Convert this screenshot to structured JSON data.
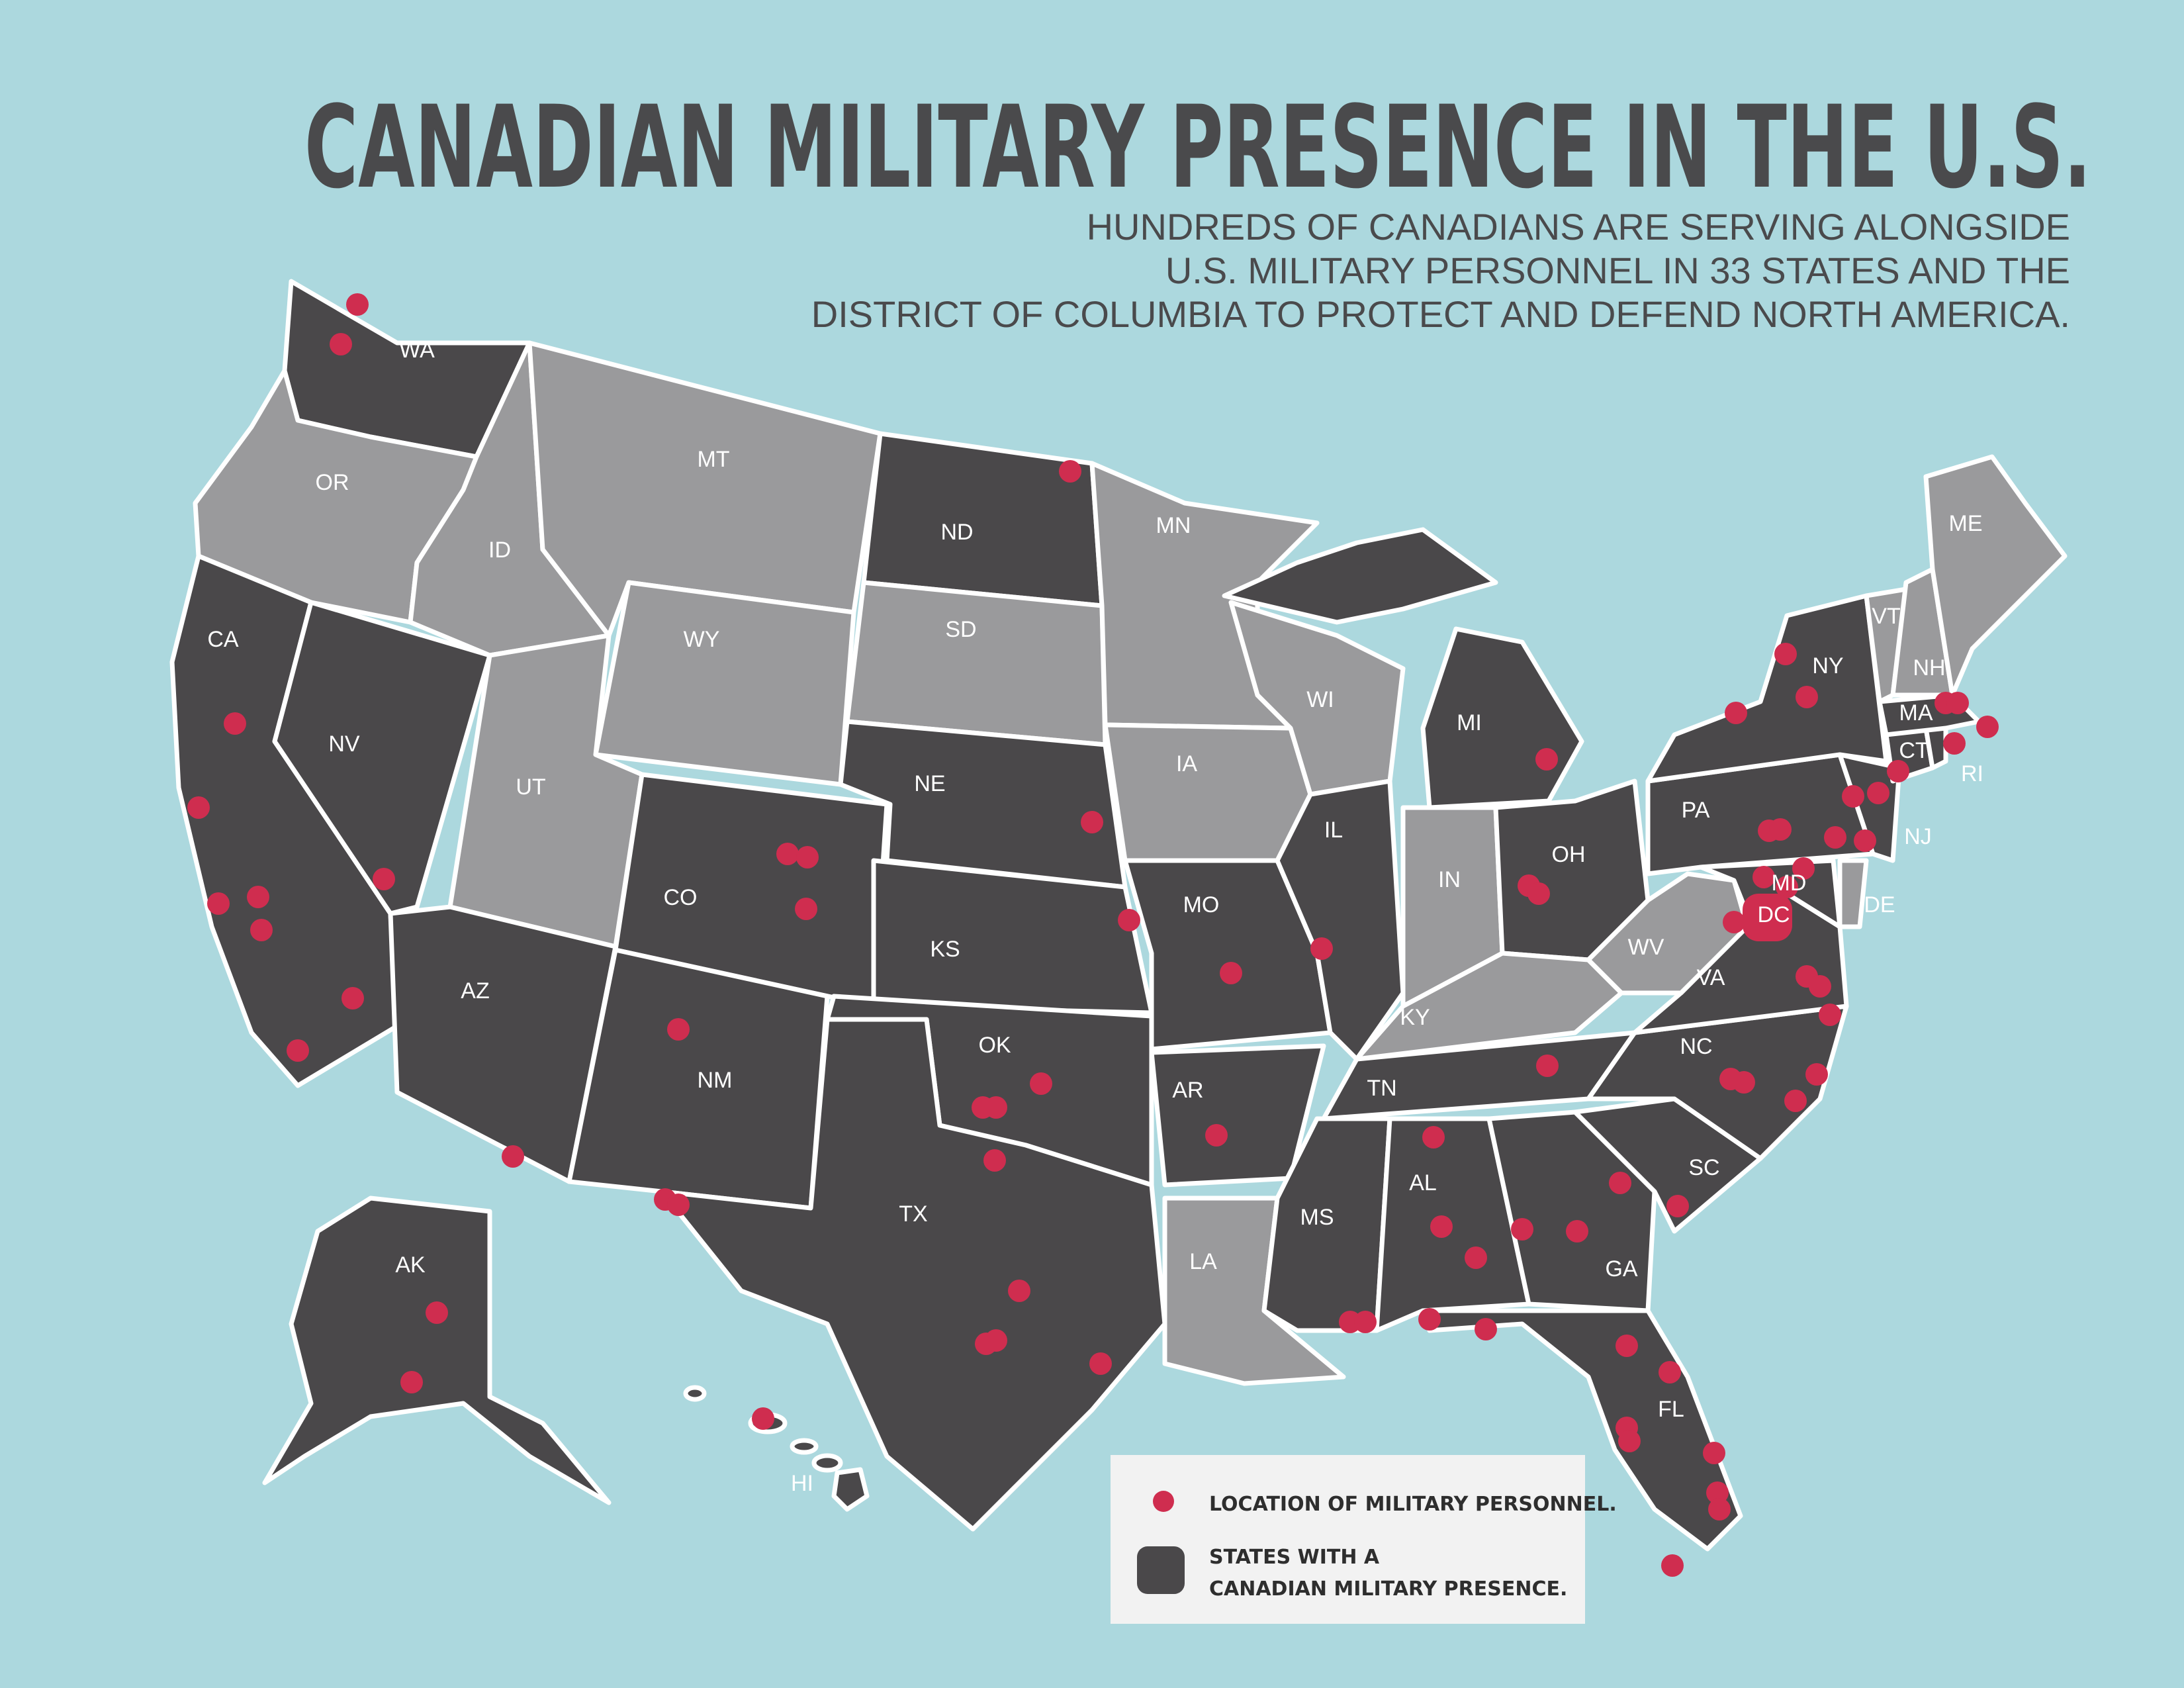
{
  "title": "CANADIAN MILITARY PRESENCE IN THE U.S.",
  "subtitle": [
    "HUNDREDS OF CANADIANS ARE SERVING ALONGSIDE",
    "U.S. MILITARY PERSONNEL IN 33 STATES AND THE",
    "DISTRICT OF COLUMBIA TO PROTECT AND DEFEND NORTH AMERICA."
  ],
  "colors": {
    "background": "#acd8de",
    "with_presence": "#4a484a",
    "without_presence": "#9a9a9c",
    "personnel_marker": "#cf2d4f",
    "border": "#ffffff"
  },
  "states_with_presence": [
    "WA",
    "CA",
    "NV",
    "AZ",
    "CO",
    "NM",
    "ND",
    "NE",
    "KS",
    "OK",
    "TX",
    "MO",
    "AR",
    "IL",
    "MS",
    "AL",
    "TN",
    "MI",
    "OH",
    "GA",
    "SC",
    "NC",
    "FL",
    "VA",
    "MD",
    "PA",
    "NY",
    "NJ",
    "MA",
    "CT",
    "RI",
    "AK",
    "HI",
    "DC"
  ],
  "states_without_presence": [
    "OR",
    "ID",
    "MT",
    "WY",
    "UT",
    "SD",
    "MN",
    "IA",
    "WI",
    "LA",
    "IN",
    "KY",
    "WV",
    "VT",
    "NH",
    "ME",
    "DE"
  ],
  "labels": {
    "WA": "WA",
    "OR": "OR",
    "CA": "CA",
    "NV": "NV",
    "ID": "ID",
    "MT": "MT",
    "WY": "WY",
    "UT": "UT",
    "AZ": "AZ",
    "CO": "CO",
    "NM": "NM",
    "ND": "ND",
    "SD": "SD",
    "NE": "NE",
    "KS": "KS",
    "OK": "OK",
    "TX": "TX",
    "MN": "MN",
    "IA": "IA",
    "MO": "MO",
    "AR": "AR",
    "LA": "LA",
    "WI": "WI",
    "IL": "IL",
    "MS": "MS",
    "AL": "AL",
    "TN": "TN",
    "KY": "KY",
    "IN": "IN",
    "MI": "MI",
    "OH": "OH",
    "GA": "GA",
    "FL": "FL",
    "SC": "SC",
    "NC": "NC",
    "VA": "VA",
    "WV": "WV",
    "MD": "MD",
    "DE": "DE",
    "PA": "PA",
    "NJ": "NJ",
    "NY": "NY",
    "CT": "CT",
    "RI": "RI",
    "MA": "MA",
    "VT": "VT",
    "NH": "NH",
    "ME": "ME",
    "DC": "DC",
    "AK": "AK",
    "HI": "HI"
  },
  "legend": {
    "marker_label": "LOCATION OF MILITARY PERSONNEL.",
    "state_label": [
      "STATES WITH A",
      "CANADIAN MILITARY PRESENCE."
    ]
  }
}
